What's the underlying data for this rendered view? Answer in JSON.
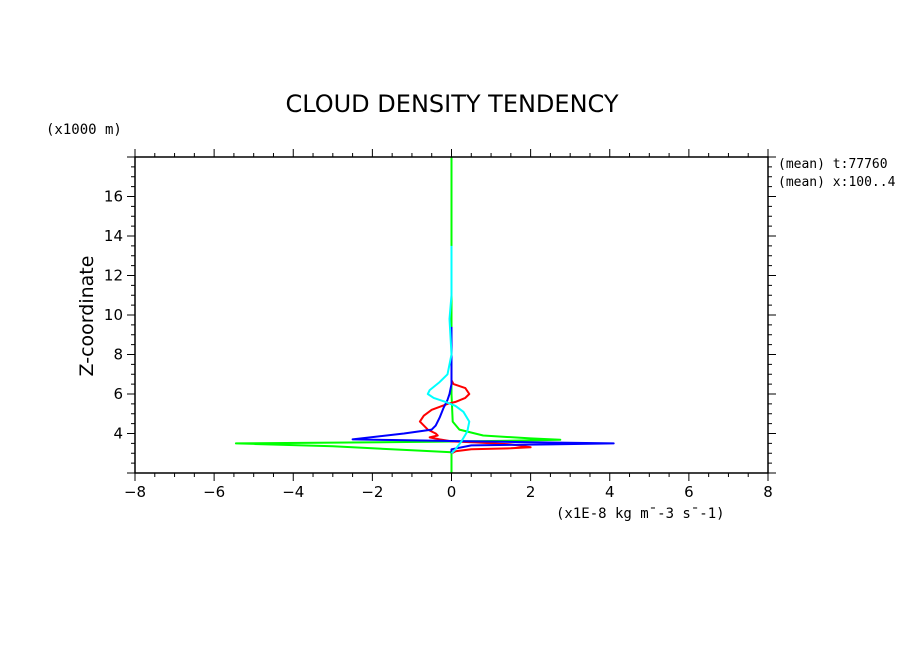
{
  "chart_data": {
    "type": "line",
    "title": "CLOUD DENSITY TENDENCY",
    "xlabel": "(x1E-8 kg m¯-3 s¯-1)",
    "ylabel": "Z-coordinate",
    "yunit": "(x1000 m)",
    "annotations": [
      "(mean) t:77760",
      "(mean) x:100..4"
    ],
    "xlim": [
      -8,
      8
    ],
    "ylim": [
      2.0,
      18.0
    ],
    "x_ticks": [
      -8,
      -6,
      -4,
      -2,
      0,
      2,
      4,
      6,
      8
    ],
    "x_tick_labels": [
      "−8",
      "−6",
      "−4",
      "−2",
      "0",
      "2",
      "4",
      "6",
      "8"
    ],
    "y_ticks": [
      4,
      6,
      8,
      10,
      12,
      14,
      16
    ],
    "y_tick_labels": [
      "4",
      "6",
      "8",
      "10",
      "12",
      "14",
      "16"
    ],
    "grid": false,
    "series": [
      {
        "color": "#00ff00",
        "points": [
          [
            0.0,
            18.0
          ],
          [
            0.0,
            10.0
          ],
          [
            0.0,
            6.0
          ],
          [
            0.03,
            4.6
          ],
          [
            0.2,
            4.2
          ],
          [
            0.8,
            3.9
          ],
          [
            2.0,
            3.75
          ],
          [
            2.75,
            3.68
          ],
          [
            1.0,
            3.62
          ],
          [
            -0.5,
            3.58
          ],
          [
            -5.45,
            3.5
          ],
          [
            -3.0,
            3.35
          ],
          [
            -1.0,
            3.15
          ],
          [
            0.0,
            3.05
          ],
          [
            0.0,
            2.0
          ]
        ]
      },
      {
        "color": "#ff0000",
        "points": [
          [
            0.0,
            9.2
          ],
          [
            0.0,
            7.0
          ],
          [
            0.0,
            6.7
          ],
          [
            0.05,
            6.5
          ],
          [
            0.35,
            6.3
          ],
          [
            0.45,
            6.0
          ],
          [
            0.35,
            5.8
          ],
          [
            0.1,
            5.6
          ],
          [
            -0.1,
            5.5
          ],
          [
            -0.5,
            5.2
          ],
          [
            -0.7,
            4.9
          ],
          [
            -0.8,
            4.6
          ],
          [
            -0.6,
            4.2
          ],
          [
            -0.4,
            4.0
          ],
          [
            -0.35,
            3.9
          ],
          [
            -0.55,
            3.8
          ],
          [
            -0.3,
            3.7
          ],
          [
            0.0,
            3.6
          ],
          [
            0.6,
            3.55
          ],
          [
            1.5,
            3.45
          ],
          [
            2.0,
            3.3
          ],
          [
            1.5,
            3.25
          ],
          [
            0.5,
            3.2
          ],
          [
            0.1,
            3.1
          ],
          [
            0.0,
            3.0
          ]
        ]
      },
      {
        "color": "#0000ff",
        "points": [
          [
            0.0,
            9.4
          ],
          [
            0.0,
            8.0
          ],
          [
            0.0,
            6.5
          ],
          [
            -0.05,
            6.0
          ],
          [
            -0.1,
            5.7
          ],
          [
            -0.2,
            5.3
          ],
          [
            -0.3,
            4.8
          ],
          [
            -0.4,
            4.4
          ],
          [
            -0.5,
            4.2
          ],
          [
            -1.2,
            4.0
          ],
          [
            -2.5,
            3.7
          ],
          [
            -1.5,
            3.67
          ],
          [
            0.0,
            3.62
          ],
          [
            2.0,
            3.56
          ],
          [
            4.1,
            3.5
          ],
          [
            2.5,
            3.45
          ],
          [
            0.5,
            3.4
          ],
          [
            0.0,
            3.2
          ],
          [
            0.0,
            3.0
          ]
        ]
      },
      {
        "color": "#00ffff",
        "points": [
          [
            0.0,
            13.5
          ],
          [
            0.0,
            11.0
          ],
          [
            -0.05,
            9.8
          ],
          [
            0.0,
            8.0
          ],
          [
            -0.1,
            7.0
          ],
          [
            -0.3,
            6.6
          ],
          [
            -0.55,
            6.2
          ],
          [
            -0.6,
            6.0
          ],
          [
            -0.45,
            5.8
          ],
          [
            -0.15,
            5.6
          ],
          [
            0.1,
            5.4
          ],
          [
            0.3,
            5.1
          ],
          [
            0.45,
            4.6
          ],
          [
            0.4,
            4.1
          ],
          [
            0.25,
            3.6
          ],
          [
            0.1,
            3.2
          ],
          [
            0.0,
            3.0
          ]
        ]
      }
    ]
  }
}
